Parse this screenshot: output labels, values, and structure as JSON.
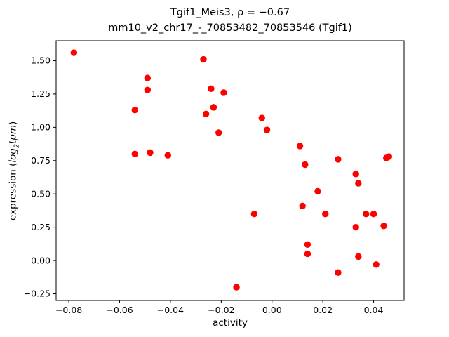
{
  "chart_data": {
    "type": "scatter",
    "title_line1": "Tgif1_Meis3, ρ = −0.67",
    "title_line2": "mm10_v2_chr17_-_70853482_70853546 (Tgif1)",
    "xlabel": "activity",
    "ylabel_prefix": "expression (",
    "ylabel_log": "log",
    "ylabel_sub": "2",
    "ylabel_tpm": "tpm",
    "ylabel_suffix": ")",
    "marker_color": "#ff0000",
    "marker_radius": 4.7,
    "grid": false,
    "legend": "none",
    "xlim": [
      -0.085,
      0.052
    ],
    "ylim": [
      -0.3,
      1.65
    ],
    "xticks": [
      -0.08,
      -0.06,
      -0.04,
      -0.02,
      0.0,
      0.02,
      0.04
    ],
    "xtick_labels": [
      "−0.08",
      "−0.06",
      "−0.04",
      "−0.02",
      "0.00",
      "0.02",
      "0.04"
    ],
    "yticks": [
      -0.25,
      0.0,
      0.25,
      0.5,
      0.75,
      1.0,
      1.25,
      1.5
    ],
    "ytick_labels": [
      "−0.25",
      "0.00",
      "0.25",
      "0.50",
      "0.75",
      "1.00",
      "1.25",
      "1.50"
    ],
    "points": [
      [
        -0.078,
        1.56
      ],
      [
        -0.054,
        1.13
      ],
      [
        -0.049,
        1.37
      ],
      [
        -0.049,
        1.28
      ],
      [
        -0.054,
        0.8
      ],
      [
        -0.048,
        0.81
      ],
      [
        -0.041,
        0.79
      ],
      [
        -0.027,
        1.51
      ],
      [
        -0.026,
        1.1
      ],
      [
        -0.024,
        1.29
      ],
      [
        -0.023,
        1.15
      ],
      [
        -0.019,
        1.26
      ],
      [
        -0.021,
        0.96
      ],
      [
        -0.004,
        1.07
      ],
      [
        -0.002,
        0.98
      ],
      [
        -0.007,
        0.35
      ],
      [
        -0.014,
        -0.2
      ],
      [
        0.011,
        0.86
      ],
      [
        0.013,
        0.72
      ],
      [
        0.012,
        0.41
      ],
      [
        0.014,
        0.12
      ],
      [
        0.014,
        0.05
      ],
      [
        0.018,
        0.52
      ],
      [
        0.021,
        0.35
      ],
      [
        0.026,
        0.76
      ],
      [
        0.026,
        -0.09
      ],
      [
        0.033,
        0.65
      ],
      [
        0.034,
        0.58
      ],
      [
        0.033,
        0.25
      ],
      [
        0.034,
        0.03
      ],
      [
        0.037,
        0.35
      ],
      [
        0.04,
        0.35
      ],
      [
        0.041,
        -0.03
      ],
      [
        0.045,
        0.77
      ],
      [
        0.046,
        0.78
      ],
      [
        0.044,
        0.26
      ]
    ]
  }
}
